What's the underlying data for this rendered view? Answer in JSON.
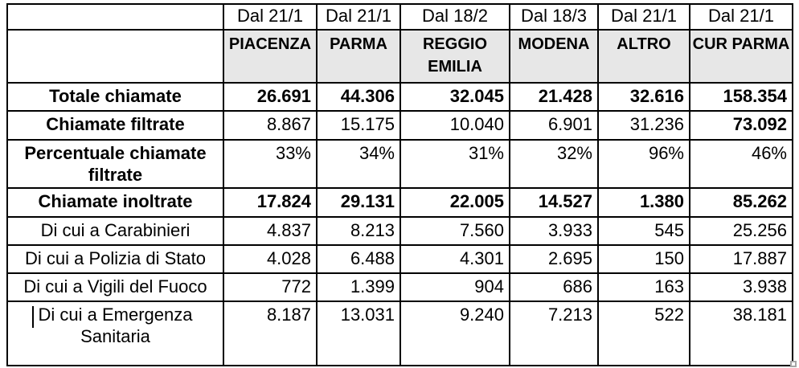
{
  "table": {
    "periods": [
      "",
      "Dal 21/1",
      "Dal 21/1",
      "Dal 18/2",
      "Dal 18/3",
      "Dal 21/1",
      "Dal 21/1"
    ],
    "cities": [
      "",
      "PIACENZA",
      "PARMA",
      "REGGIO EMILIA",
      "MODENA",
      "ALTRO",
      "CUR PARMA"
    ],
    "rows": [
      {
        "label": "Totale chiamate",
        "values": [
          "26.691",
          "44.306",
          "32.045",
          "21.428",
          "32.616",
          "158.354"
        ]
      },
      {
        "label": "Chiamate filtrate",
        "values": [
          "8.867",
          "15.175",
          "10.040",
          "6.901",
          "31.236",
          "73.092"
        ]
      },
      {
        "label": "Percentuale chiamate filtrate",
        "values": [
          "33%",
          "34%",
          "31%",
          "32%",
          "96%",
          "46%"
        ]
      },
      {
        "label": "Chiamate inoltrate",
        "values": [
          "17.824",
          "29.131",
          "22.005",
          "14.527",
          "1.380",
          "85.262"
        ]
      },
      {
        "label": "Di cui a Carabinieri",
        "values": [
          "4.837",
          "8.213",
          "7.560",
          "3.933",
          "545",
          "25.256"
        ]
      },
      {
        "label": "Di cui a Polizia di Stato",
        "values": [
          "4.028",
          "6.488",
          "4.301",
          "2.695",
          "150",
          "17.887"
        ]
      },
      {
        "label": "Di cui a Vigili del Fuoco",
        "values": [
          "772",
          "1.399",
          "904",
          "686",
          "163",
          "3.938"
        ]
      },
      {
        "label": "Di cui a Emergenza Sanitaria",
        "values": [
          "8.187",
          "13.031",
          "9.240",
          "7.213",
          "522",
          "38.181"
        ]
      }
    ]
  },
  "colors": {
    "header_bg": "#e7e7e7",
    "border": "#000000",
    "resize_handle_border": "#a6a6a6"
  },
  "decorations": {
    "text_cursor": "text-cursor",
    "resize_handle": "table-resize-handle"
  }
}
